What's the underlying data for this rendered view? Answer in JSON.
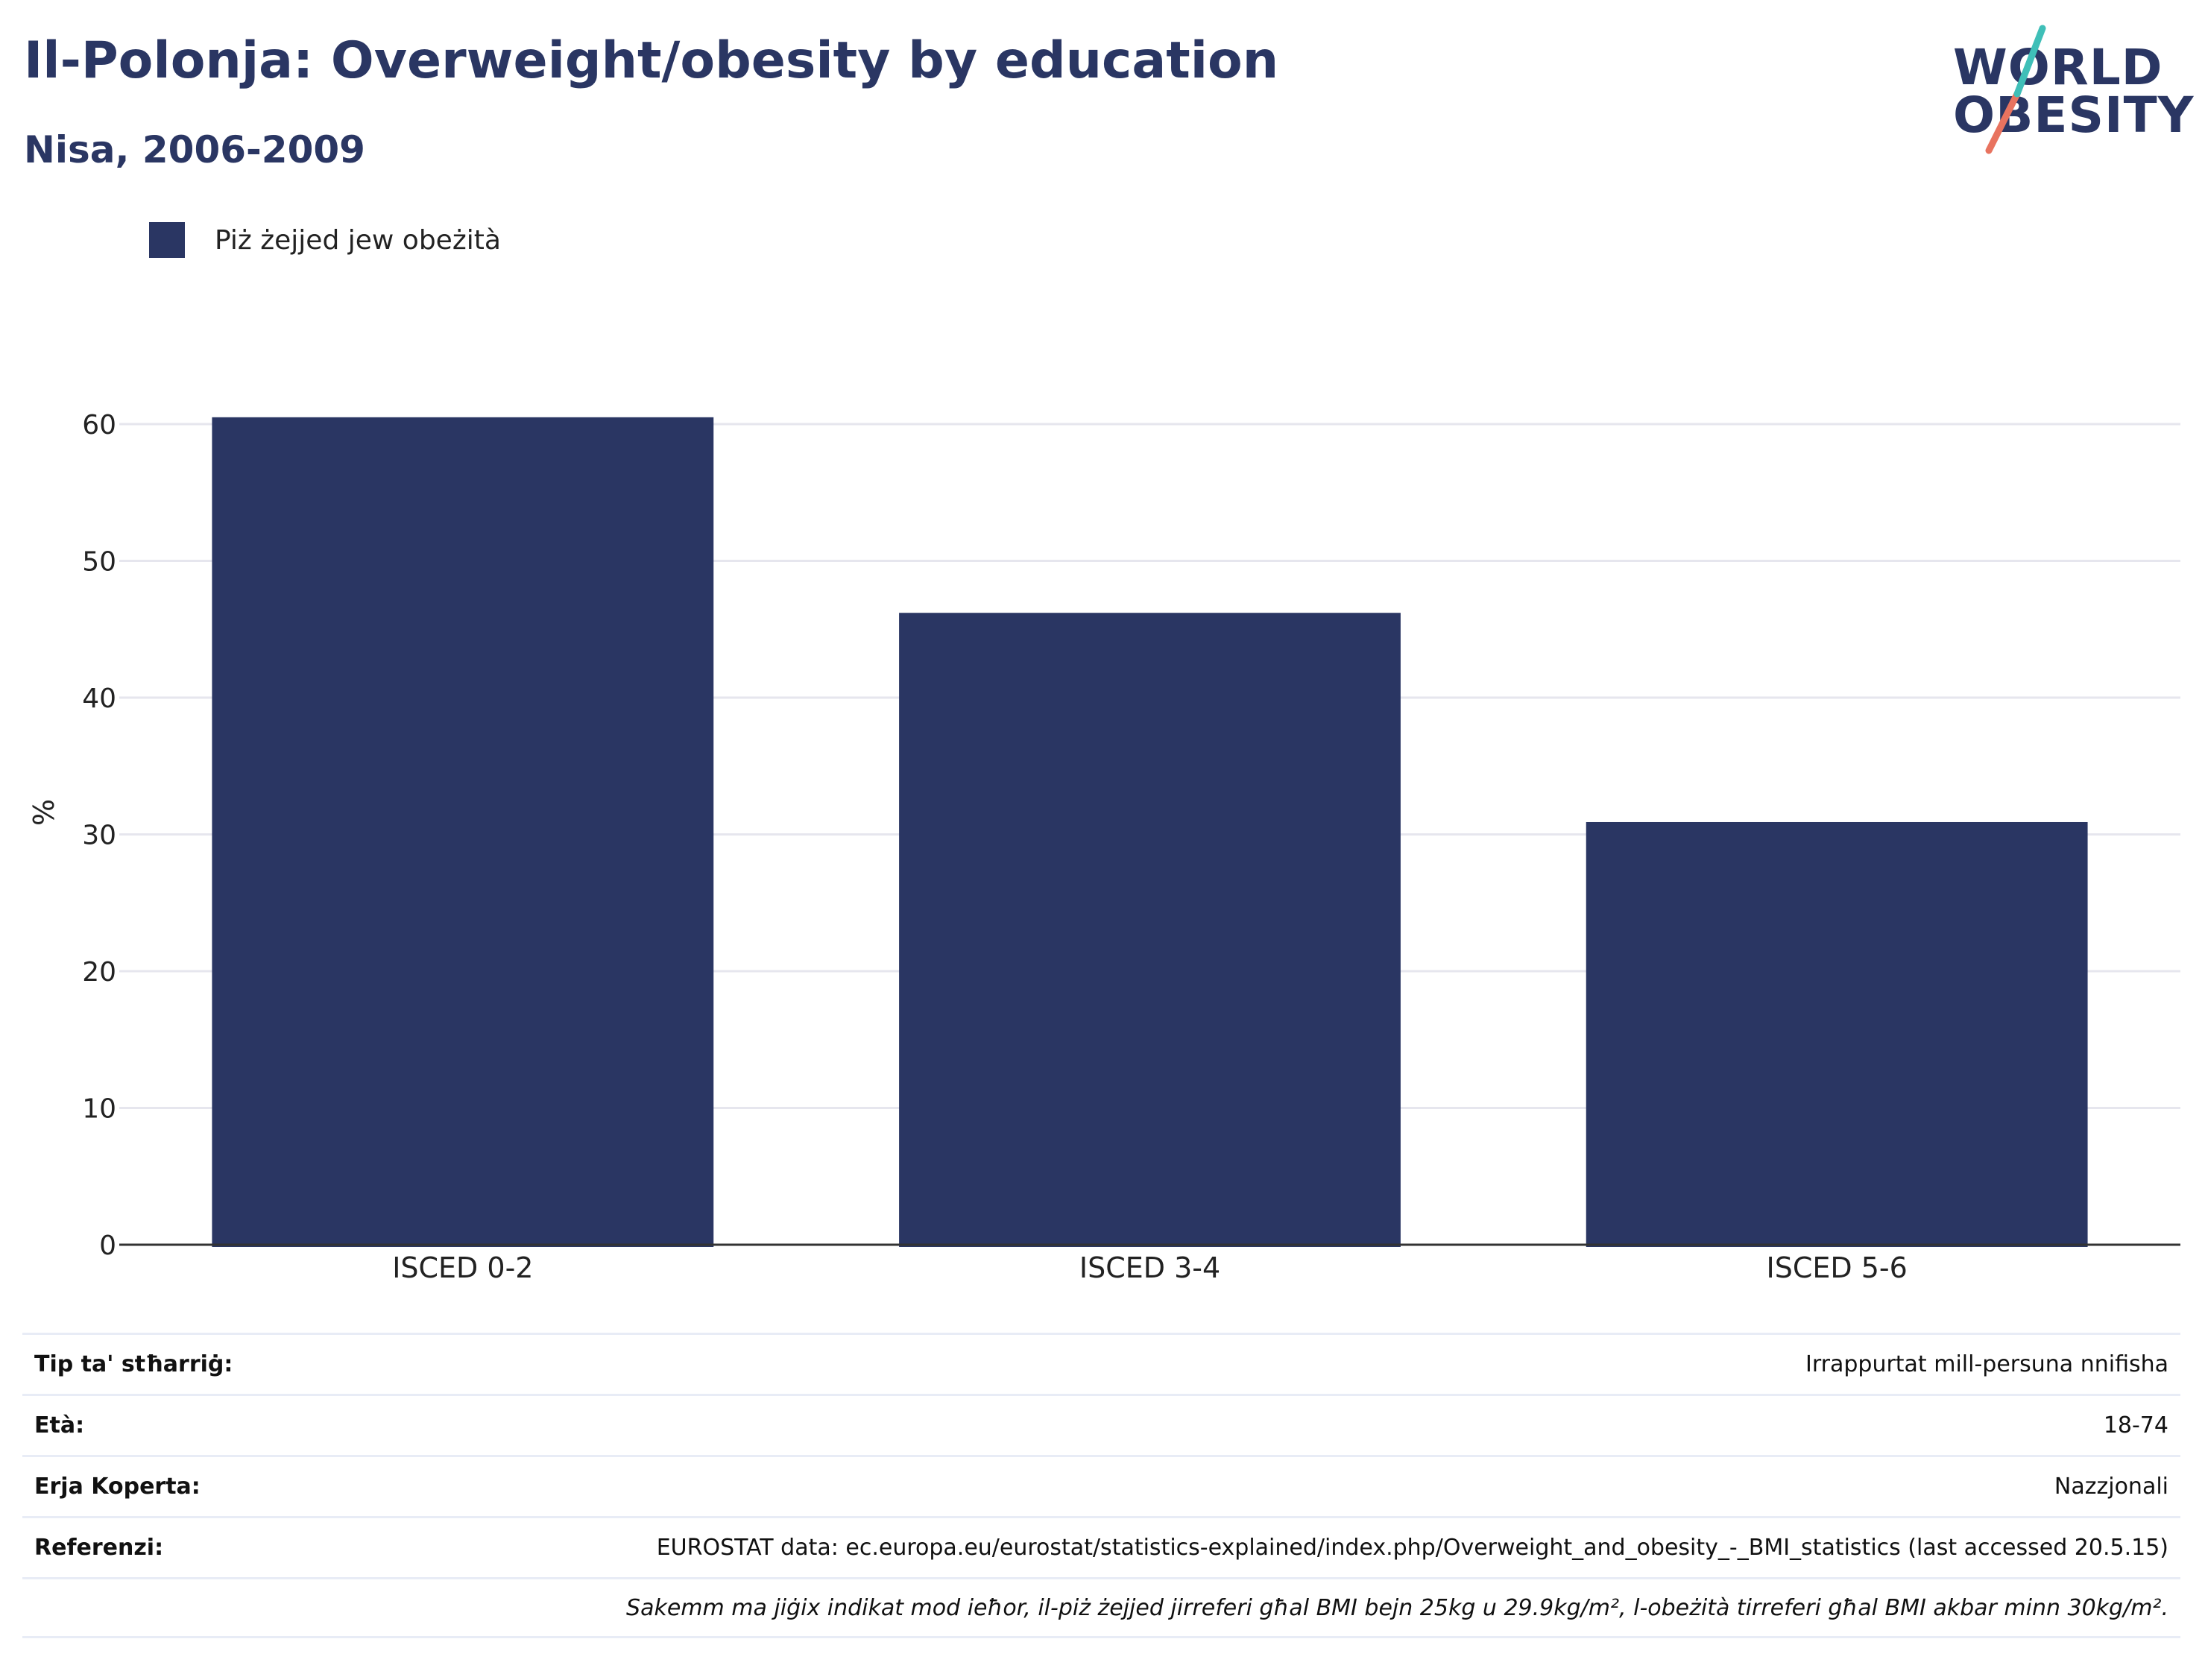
{
  "title": "Il-Polonja: Overweight/obesity by education",
  "subtitle": "Nisa, 2006-2009",
  "logo": {
    "line1": "WORLD",
    "line2": "OBESITY",
    "accent_teal": "#3fbfb8",
    "accent_coral": "#e8735f"
  },
  "chart_data": {
    "type": "bar",
    "categories": [
      "ISCED 0-2",
      "ISCED 3-4",
      "ISCED 5-6"
    ],
    "series": [
      {
        "name": "Piż żejjed jew obeżità",
        "values": [
          60.5,
          46.2,
          30.9
        ],
        "color": "#2a3663"
      }
    ],
    "ylabel": "%",
    "ylim": [
      0,
      65
    ],
    "yticks": [
      0,
      10,
      20,
      30,
      40,
      50,
      60
    ],
    "grid": true,
    "legend": "top-left"
  },
  "info_table": [
    {
      "key": "Tip ta' stħarriġ:",
      "value": "Irrappurtat mill-persuna nnifisha"
    },
    {
      "key": "Età:",
      "value": "18-74"
    },
    {
      "key": "Erja Koperta:",
      "value": "Nazzjonali"
    },
    {
      "key": "Referenzi:",
      "value": "EUROSTAT data: ec.europa.eu/eurostat/statistics-explained/index.php/Overweight_and_obesity_-_BMI_statistics (last accessed 20.5.15)"
    },
    {
      "key": "",
      "value": "Sakemm ma jiġix indikat mod ieħor, il-piż żejjed jirreferi għal BMI bejn 25kg u 29.9kg/m², l-obeżità tirreferi għal BMI akbar minn 30kg/m²."
    }
  ]
}
